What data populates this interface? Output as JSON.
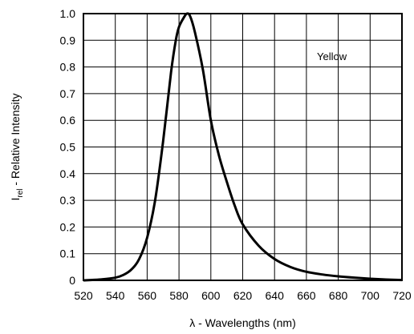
{
  "chart_data": {
    "type": "line",
    "xlabel_symbol": "λ",
    "xlabel": " - Wavelengths (nm)",
    "ylabel_main": "I",
    "ylabel_sub": "rel",
    "ylabel": " - Relative Intensity",
    "xlim": [
      520,
      720
    ],
    "ylim": [
      0,
      1.0
    ],
    "x_ticks": [
      "520",
      "540",
      "560",
      "580",
      "600",
      "620",
      "640",
      "660",
      "680",
      "700",
      "720"
    ],
    "y_ticks": [
      "0",
      "0.1",
      "0.2",
      "0.3",
      "0.4",
      "0.5",
      "0.6",
      "0.7",
      "0.8",
      "0.9",
      "1.0"
    ],
    "grid": true,
    "legend_position": "top-right",
    "series": [
      {
        "name": "Yellow",
        "color": "#000000",
        "x": [
          520,
          530,
          540,
          545,
          550,
          555,
          560,
          565,
          570,
          575,
          578,
          580,
          583,
          585,
          587,
          590,
          595,
          600,
          605,
          610,
          615,
          620,
          630,
          640,
          650,
          660,
          670,
          680,
          690,
          700,
          710,
          720
        ],
        "y": [
          0.0,
          0.003,
          0.01,
          0.02,
          0.04,
          0.08,
          0.16,
          0.3,
          0.52,
          0.78,
          0.9,
          0.95,
          0.985,
          1.0,
          0.99,
          0.93,
          0.79,
          0.6,
          0.47,
          0.37,
          0.28,
          0.21,
          0.13,
          0.08,
          0.05,
          0.032,
          0.022,
          0.015,
          0.01,
          0.006,
          0.003,
          0.001
        ]
      }
    ]
  }
}
